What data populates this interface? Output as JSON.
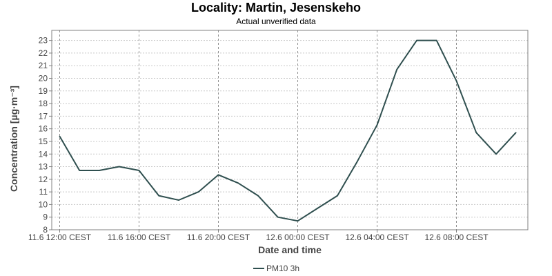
{
  "chart_data": {
    "type": "line",
    "title": "Locality: Martin, Jesenskeho",
    "subtitle": "Actual unverified data",
    "xlabel": "Date and time",
    "ylabel": "Concentration [µg·m⁻³]",
    "ylim": [
      8,
      23.8
    ],
    "y_ticks": [
      8,
      9,
      10,
      11,
      12,
      13,
      14,
      15,
      16,
      17,
      18,
      19,
      20,
      21,
      22,
      23
    ],
    "x_tick_labels": [
      "11.6 12:00 CEST",
      "11.6 16:00 CEST",
      "11.6 20:00 CEST",
      "12.6 00:00 CEST",
      "12.6 04:00 CEST",
      "12.6 08:00 CEST"
    ],
    "x_range": [
      "11.6 11:36 CEST",
      "12.6 11:36 CEST"
    ],
    "grid": true,
    "legend_position": "bottom",
    "series": [
      {
        "name": "PM10 3h",
        "color": "#2f4f4f",
        "x": [
          "11.6 12:00 CEST",
          "11.6 13:00 CEST",
          "11.6 14:00 CEST",
          "11.6 15:00 CEST",
          "11.6 16:00 CEST",
          "11.6 17:00 CEST",
          "11.6 18:00 CEST",
          "11.6 19:00 CEST",
          "11.6 20:00 CEST",
          "11.6 21:00 CEST",
          "11.6 22:00 CEST",
          "11.6 23:00 CEST",
          "12.6 00:00 CEST",
          "12.6 01:00 CEST",
          "12.6 02:00 CEST",
          "12.6 03:00 CEST",
          "12.6 04:00 CEST",
          "12.6 05:00 CEST",
          "12.6 06:00 CEST",
          "12.6 07:00 CEST",
          "12.6 08:00 CEST",
          "12.6 09:00 CEST",
          "12.6 10:00 CEST",
          "12.6 11:00 CEST"
        ],
        "values": [
          15.4,
          12.7,
          12.7,
          13.0,
          12.7,
          10.7,
          10.35,
          11.0,
          12.35,
          11.7,
          10.7,
          9.0,
          8.7,
          9.7,
          10.7,
          13.4,
          16.3,
          20.7,
          23.0,
          23.0,
          19.8,
          15.7,
          14.0,
          15.7
        ]
      }
    ]
  }
}
